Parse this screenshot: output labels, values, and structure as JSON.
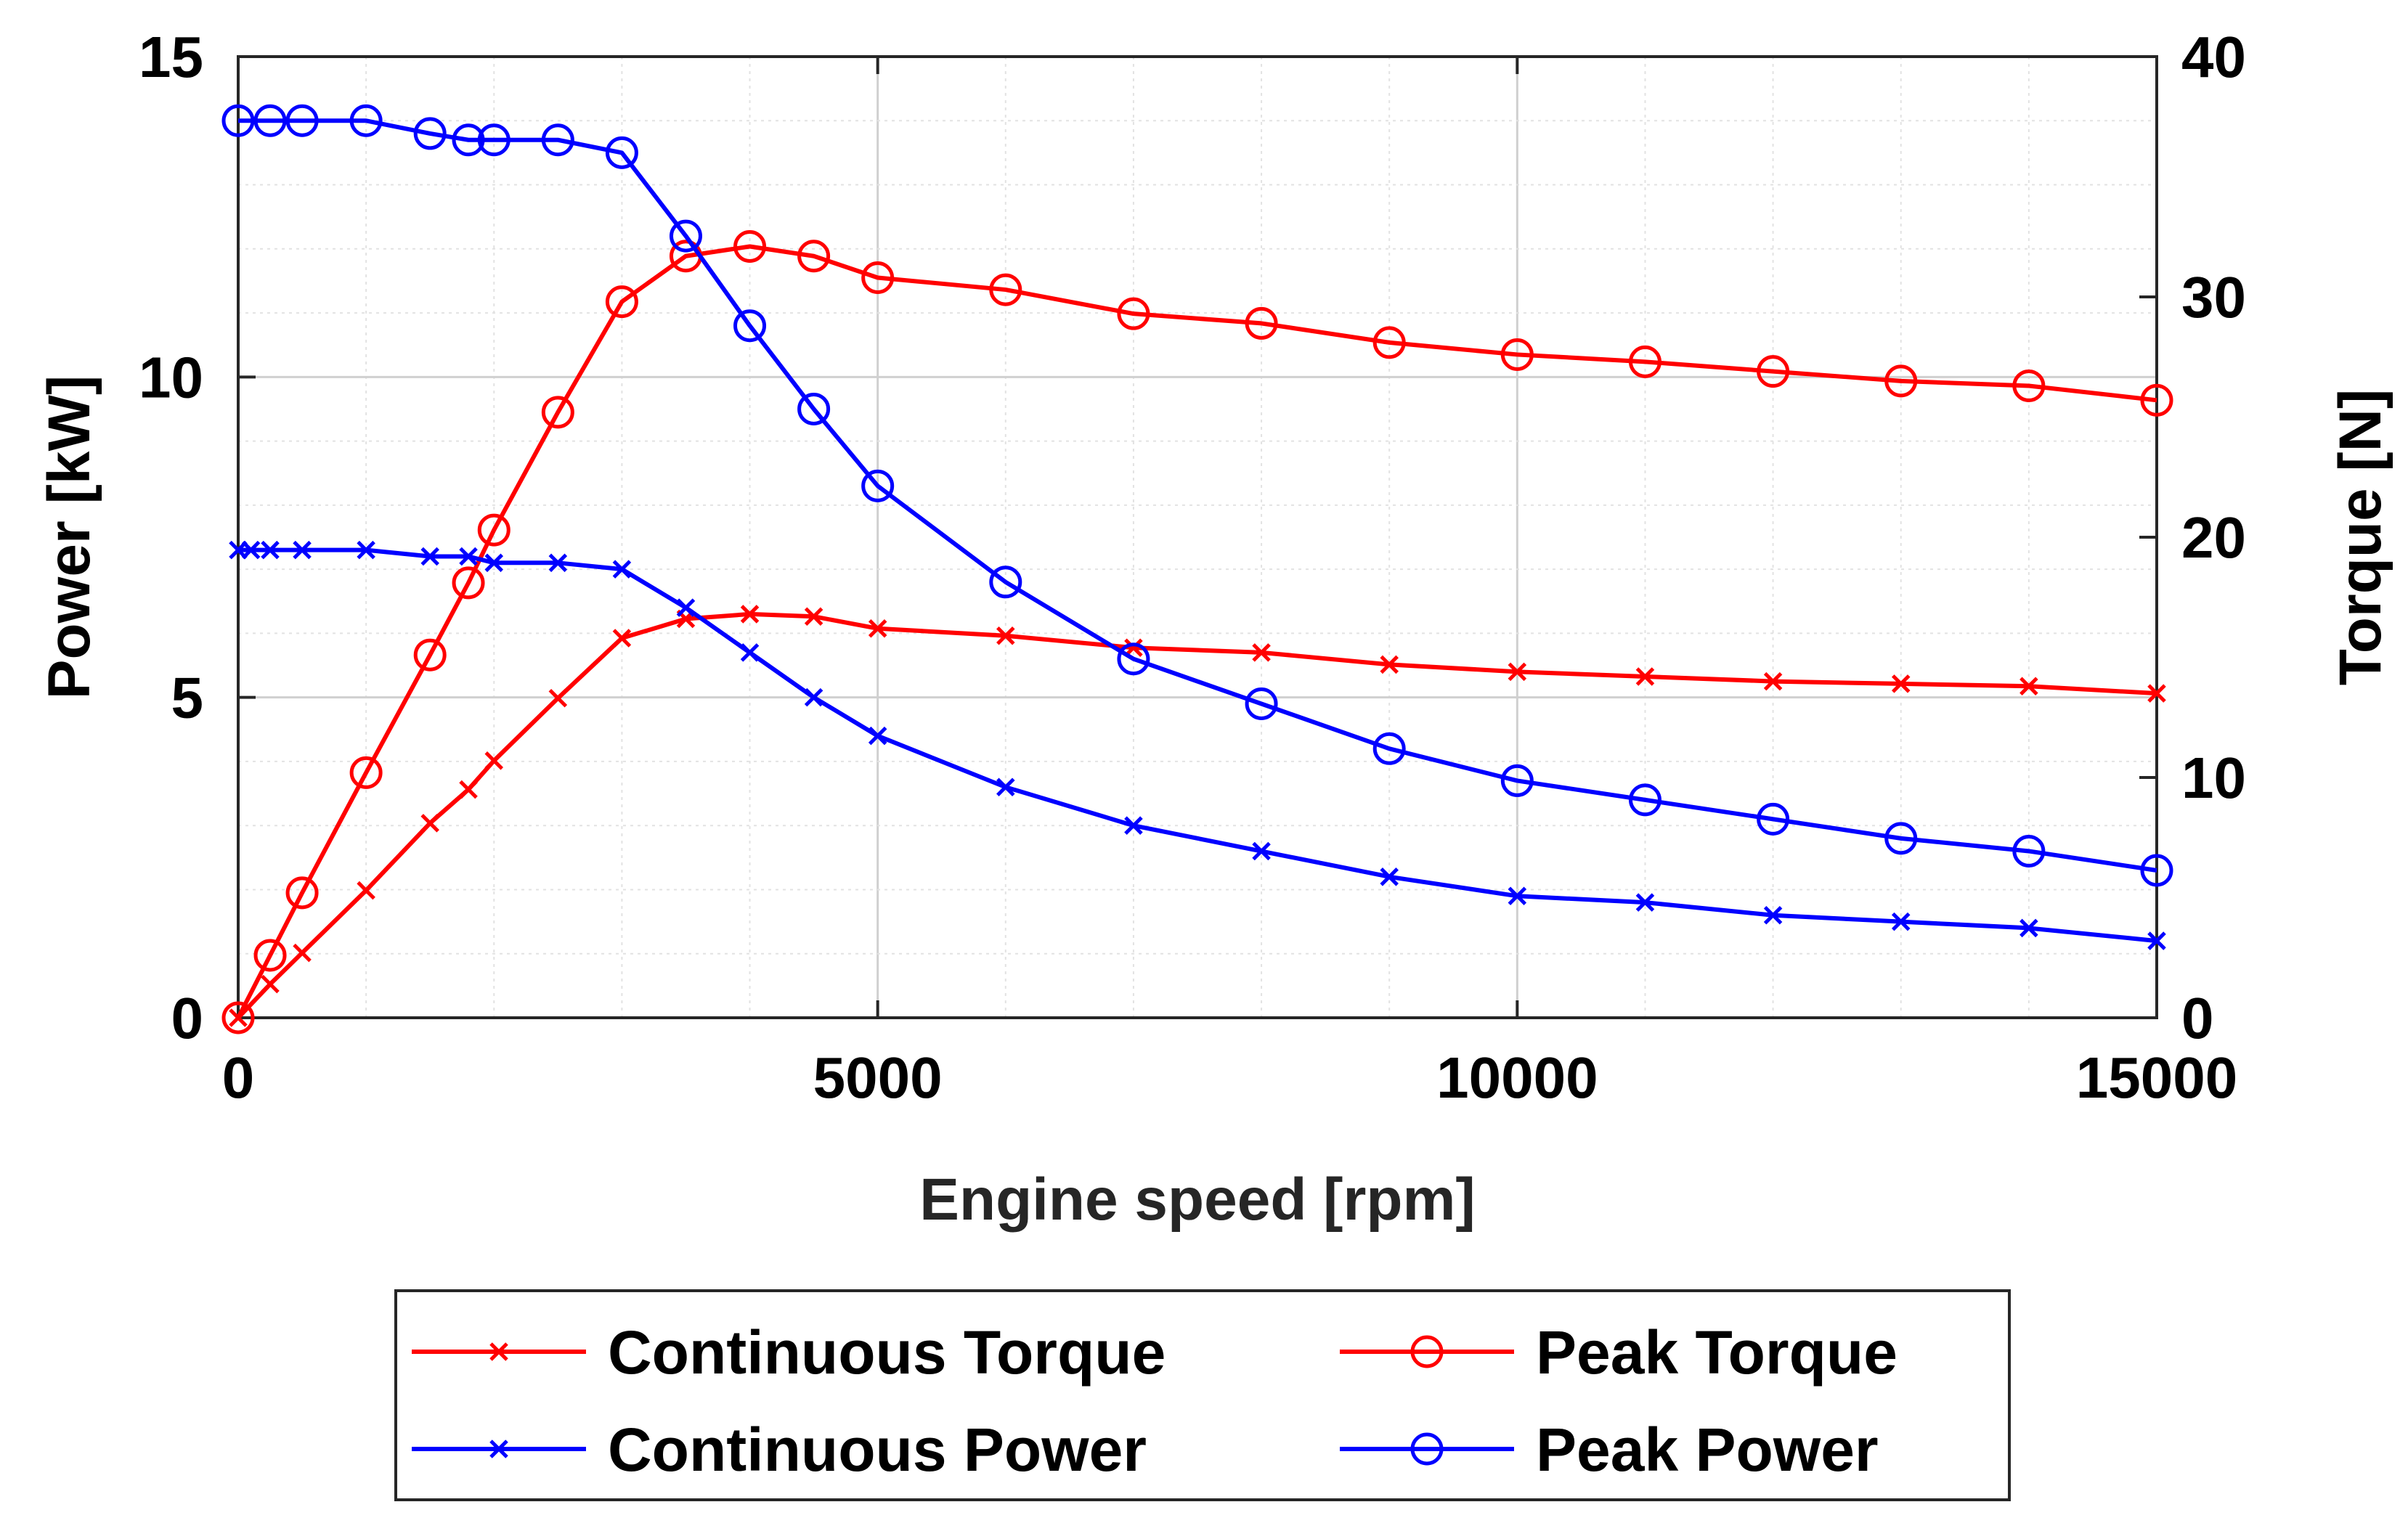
{
  "chart_data": {
    "type": "line",
    "xlabel": "Engine speed [rpm]",
    "ylabel_left": "Power [kW]",
    "ylabel_right": "Torque [N]",
    "xlim": [
      0,
      15000
    ],
    "ylim_left": [
      0,
      15
    ],
    "ylim_right": [
      0,
      40
    ],
    "xticks": [
      0,
      5000,
      10000,
      15000
    ],
    "yticks_left": [
      0,
      5,
      10,
      15
    ],
    "yticks_right": [
      0,
      10,
      20,
      30,
      40
    ],
    "grid": true,
    "legend_position": "bottom-outside",
    "colors": {
      "red": "#ff0000",
      "blue": "#0000ff"
    },
    "series": [
      {
        "name": "Continuous Torque",
        "axis": "right",
        "color": "#ff0000",
        "marker": "x",
        "x": [
          0,
          250,
          500,
          1000,
          1500,
          1800,
          2000,
          2500,
          3000,
          3500,
          4000,
          4500,
          5000,
          6000,
          7000,
          8000,
          9000,
          10000,
          11000,
          12000,
          13000,
          14000,
          15000
        ],
        "values": [
          0,
          1.4,
          2.7,
          5.3,
          8.1,
          9.5,
          10.7,
          13.3,
          15.8,
          16.6,
          16.8,
          16.7,
          16.2,
          15.9,
          15.4,
          15.2,
          14.7,
          14.4,
          14.2,
          14.0,
          13.9,
          13.8,
          13.5
        ]
      },
      {
        "name": "Peak Torque",
        "axis": "right",
        "color": "#ff0000",
        "marker": "o",
        "x": [
          0,
          250,
          500,
          1000,
          1500,
          1800,
          2000,
          2500,
          3000,
          3500,
          4000,
          4500,
          5000,
          6000,
          7000,
          8000,
          9000,
          10000,
          11000,
          12000,
          13000,
          14000,
          15000
        ],
        "values": [
          0,
          2.6,
          5.2,
          10.2,
          15.1,
          18.1,
          20.3,
          25.2,
          29.8,
          31.7,
          32.1,
          31.7,
          30.8,
          30.3,
          29.3,
          28.9,
          28.1,
          27.6,
          27.3,
          26.9,
          26.5,
          26.3,
          25.7
        ]
      },
      {
        "name": "Continuous Power",
        "axis": "left",
        "color": "#0000ff",
        "marker": "x",
        "x": [
          0,
          100,
          250,
          500,
          1000,
          1500,
          1800,
          2000,
          2500,
          3000,
          3500,
          4000,
          4500,
          5000,
          6000,
          7000,
          8000,
          9000,
          10000,
          11000,
          12000,
          13000,
          14000,
          15000
        ],
        "values": [
          7.3,
          7.3,
          7.3,
          7.3,
          7.3,
          7.2,
          7.2,
          7.1,
          7.1,
          7.0,
          6.4,
          5.7,
          5.0,
          4.4,
          3.6,
          3.0,
          2.6,
          2.2,
          1.9,
          1.8,
          1.6,
          1.5,
          1.4,
          1.2
        ]
      },
      {
        "name": "Peak Power",
        "axis": "left",
        "color": "#0000ff",
        "marker": "o",
        "x": [
          0,
          250,
          500,
          1000,
          1500,
          1800,
          2000,
          2500,
          3000,
          3500,
          4000,
          4500,
          5000,
          6000,
          7000,
          8000,
          9000,
          10000,
          11000,
          12000,
          13000,
          14000,
          15000
        ],
        "values": [
          14.0,
          14.0,
          14.0,
          14.0,
          13.8,
          13.7,
          13.7,
          13.7,
          13.5,
          12.2,
          10.8,
          9.5,
          8.3,
          6.8,
          5.6,
          4.9,
          4.2,
          3.7,
          3.4,
          3.1,
          2.8,
          2.6,
          2.3
        ]
      }
    ]
  }
}
